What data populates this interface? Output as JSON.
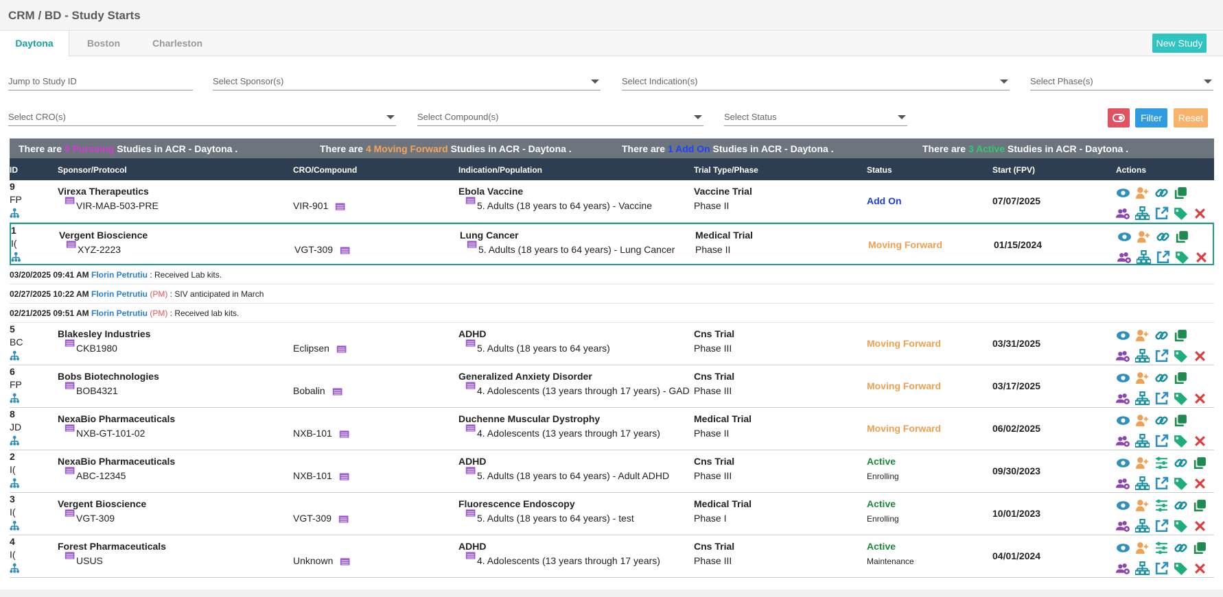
{
  "header": {
    "title": "CRM / BD - Study Starts"
  },
  "tabs": [
    "Daytona",
    "Boston",
    "Charleston"
  ],
  "new_study_button": "New Study",
  "filters": {
    "study_id": "Jump to Study ID",
    "sponsor": "Select Sponsor(s)",
    "indication": "Select Indication(s)",
    "phase": "Select Phase(s)",
    "cro": "Select CRO(s)",
    "compound": "Select Compound(s)",
    "status": "Select Status"
  },
  "buttons": {
    "filter": "Filter",
    "reset": "Reset"
  },
  "summary": [
    {
      "prefix": "There are",
      "count": 0,
      "label": "Pursuing",
      "suffix": "Studies in ACR - Daytona .",
      "color": "#d63ad6"
    },
    {
      "prefix": "There are",
      "count": 4,
      "label": "Moving Forward",
      "suffix": "Studies in ACR - Daytona .",
      "color": "#f5a55a"
    },
    {
      "prefix": "There are",
      "count": 1,
      "label": "Add On",
      "suffix": "Studies in ACR - Daytona .",
      "color": "#2040ff"
    },
    {
      "prefix": "There are",
      "count": 3,
      "label": "Active",
      "suffix": "Studies in ACR - Daytona .",
      "color": "#2ecc71"
    }
  ],
  "table": {
    "columns": [
      "ID",
      "Sponsor/Protocol",
      "CRO/Compound",
      "Indication/Population",
      "Trial Type/Phase",
      "Status",
      "Start (FPV)",
      "Actions"
    ],
    "rows": [
      {
        "id": 9,
        "initials": "FP",
        "sponsor": "Virexa Therapeutics",
        "protocol": "VIR-MAB-503-PRE",
        "compound": "VIR-901",
        "indication": "Ebola Vaccine",
        "population": "5. Adults (18 years to 64 years) - Vaccine",
        "trial_type": "Vaccine Trial",
        "phase": "Phase II",
        "status": "Add On",
        "status_color": "#1a3fd6",
        "start": "07/07/2025"
      },
      {
        "id": 1,
        "initials": "I(",
        "sponsor": "Vergent Bioscience",
        "protocol": "XYZ-2223",
        "compound": "VGT-309",
        "indication": "Lung Cancer",
        "population": "5. Adults (18 years to 64 years) - Lung Cancer",
        "trial_type": "Medical Trial",
        "phase": "Phase II",
        "status": "Moving Forward",
        "status_color": "#f0a050",
        "start": "01/15/2024",
        "notes": [
          {
            "date": "03/20/2025 09:41 AM",
            "author": "Florin Petrutiu",
            "text": ": Received Lab kits."
          },
          {
            "date": "02/27/2025 10:22 AM",
            "author": "Florin Petrutiu",
            "role": "(PM)",
            "text": ": SIV anticipated in March"
          },
          {
            "date": "02/21/2025 09:51 AM",
            "author": "Florin Petrutiu",
            "role": "(PM)",
            "text": ": Received lab kits."
          }
        ]
      },
      {
        "id": 5,
        "initials": "BC",
        "sponsor": "Blakesley Industries",
        "protocol": "CKB1980",
        "compound": "Eclipsen",
        "indication": "ADHD",
        "population": "5. Adults (18 years to 64 years)",
        "trial_type": "Cns Trial",
        "phase": "Phase III",
        "status": "Moving Forward",
        "status_color": "#f0a050",
        "start": "03/31/2025"
      },
      {
        "id": 6,
        "initials": "FP",
        "sponsor": "Bobs Biotechnologies",
        "protocol": "BOB4321",
        "compound": "Bobalin",
        "indication": "Generalized Anxiety Disorder",
        "population": "4. Adolescents (13 years through 17 years) - GAD",
        "trial_type": "Cns Trial",
        "phase": "Phase III",
        "status": "Moving Forward",
        "status_color": "#f0a050",
        "start": "03/17/2025"
      },
      {
        "id": 8,
        "initials": "JD",
        "sponsor": "NexaBio Pharmaceuticals",
        "protocol": "NXB-GT-101-02",
        "compound": "NXB-101",
        "indication": "Duchenne Muscular Dystrophy",
        "population": "4. Adolescents (13 years through 17 years)",
        "trial_type": "Medical Trial",
        "phase": "Phase II",
        "status": "Moving Forward",
        "status_color": "#f0a050",
        "start": "06/02/2025"
      },
      {
        "id": 2,
        "initials": "I(",
        "sponsor": "NexaBio Pharmaceuticals",
        "protocol": "ABC-12345",
        "compound": "NXB-101",
        "indication": "ADHD",
        "population": "5. Adults (18 years to 64 years) - Adult ADHD",
        "trial_type": "Cns Trial",
        "phase": "Phase III",
        "status": "Active",
        "status_sub": "Enrolling",
        "status_color": "#1e8a3c",
        "start": "09/30/2023"
      },
      {
        "id": 3,
        "initials": "I(",
        "sponsor": "Vergent Bioscience",
        "protocol": "VGT-309",
        "compound": "VGT-309",
        "indication": "Fluorescence Endoscopy",
        "population": "5. Adults (18 years to 64 years) - test",
        "trial_type": "Medical Trial",
        "phase": "Phase I",
        "status": "Active",
        "status_sub": "Enrolling",
        "status_color": "#1e8a3c",
        "start": "10/01/2023"
      },
      {
        "id": 4,
        "initials": "I(",
        "sponsor": "Forest Pharmaceuticals",
        "protocol": "USUS",
        "compound": "Unknown",
        "indication": "ADHD",
        "population": "4. Adolescents (13 years through 17 years)",
        "trial_type": "Cns Trial",
        "phase": "Phase III",
        "status": "Active",
        "status_sub": "Maintenance",
        "status_color": "#1e8a3c",
        "start": "04/01/2024"
      }
    ]
  }
}
